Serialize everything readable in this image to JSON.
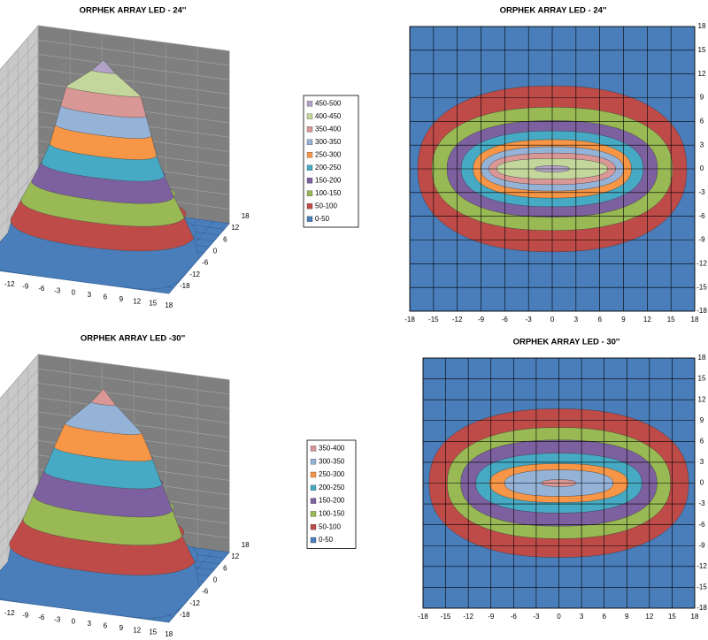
{
  "chart_data": [
    {
      "type": "surface",
      "title": "ORPHEK ARRAY LED - 24''",
      "xlim": [
        -18,
        18
      ],
      "ylim": [
        -18,
        18
      ],
      "xticks": [
        -12,
        -9,
        -6,
        -3,
        0,
        3,
        6,
        9,
        12,
        15,
        18
      ],
      "yticks": [
        18,
        12,
        6,
        0,
        -6,
        -12,
        -18
      ]
    },
    {
      "type": "contour",
      "title": "ORPHEK ARRAY LED - 24''",
      "xlim": [
        -18,
        18
      ],
      "ylim": [
        -18,
        18
      ],
      "xticks": [
        -18,
        -15,
        -12,
        -9,
        -6,
        -3,
        0,
        3,
        6,
        9,
        12,
        15,
        18
      ],
      "yticks": [
        -18,
        -15,
        -12,
        -9,
        -6,
        -3,
        0,
        3,
        6,
        9,
        12,
        15,
        18
      ],
      "grid": true,
      "series": [
        {
          "name": "450-500",
          "color": "#b3a2c7",
          "x_extent": 2.2,
          "y_extent": 0.4
        },
        {
          "name": "400-450",
          "color": "#c3d69b",
          "x_extent": 7,
          "y_extent": 1.3
        },
        {
          "name": "350-400",
          "color": "#d99795",
          "x_extent": 8,
          "y_extent": 2
        },
        {
          "name": "300-350",
          "color": "#95b3d7",
          "x_extent": 9,
          "y_extent": 2.8
        },
        {
          "name": "250-300",
          "color": "#f79646",
          "x_extent": 10,
          "y_extent": 3.7
        },
        {
          "name": "200-250",
          "color": "#46aac5",
          "x_extent": 11.5,
          "y_extent": 4.8
        },
        {
          "name": "150-200",
          "color": "#7d60a0",
          "x_extent": 13.3,
          "y_extent": 6.1
        },
        {
          "name": "100-150",
          "color": "#98b954",
          "x_extent": 15.2,
          "y_extent": 7.8
        },
        {
          "name": "50-100",
          "color": "#be4b48",
          "x_extent": 17,
          "y_extent": 10.5
        },
        {
          "name": "0-50",
          "color": "#4a7ebb"
        }
      ]
    },
    {
      "type": "surface",
      "title": "ORPHEK ARRAY LED -30''",
      "xlim": [
        -18,
        18
      ],
      "ylim": [
        -18,
        18
      ],
      "xticks": [
        -12,
        -9,
        -6,
        -3,
        0,
        3,
        6,
        9,
        12,
        15,
        18
      ],
      "yticks": [
        18,
        12,
        6,
        0,
        -6,
        -12,
        -18
      ]
    },
    {
      "type": "contour",
      "title": "ORPHEK ARRAY LED - 30''",
      "xlim": [
        -18,
        18
      ],
      "ylim": [
        -18,
        18
      ],
      "xticks": [
        -18,
        -15,
        -12,
        -9,
        -6,
        -3,
        0,
        3,
        6,
        9,
        12,
        15,
        18
      ],
      "yticks": [
        -18,
        -15,
        -12,
        -9,
        -6,
        -3,
        0,
        3,
        6,
        9,
        12,
        15,
        18
      ],
      "grid": true,
      "series": [
        {
          "name": "350-400",
          "color": "#d99795",
          "x_extent": 2.3,
          "y_extent": 0.5
        },
        {
          "name": "300-350",
          "color": "#95b3d7",
          "x_extent": 7.2,
          "y_extent": 1.9
        },
        {
          "name": "250-300",
          "color": "#f79646",
          "x_extent": 9.2,
          "y_extent": 2.8
        },
        {
          "name": "200-250",
          "color": "#46aac5",
          "x_extent": 11,
          "y_extent": 4.3
        },
        {
          "name": "150-200",
          "color": "#7d60a0",
          "x_extent": 13,
          "y_extent": 6.2
        },
        {
          "name": "100-150",
          "color": "#98b954",
          "x_extent": 14.8,
          "y_extent": 8
        },
        {
          "name": "50-100",
          "color": "#be4b48",
          "x_extent": 17.2,
          "y_extent": 10.7
        },
        {
          "name": "0-50",
          "color": "#4a7ebb"
        }
      ]
    }
  ]
}
